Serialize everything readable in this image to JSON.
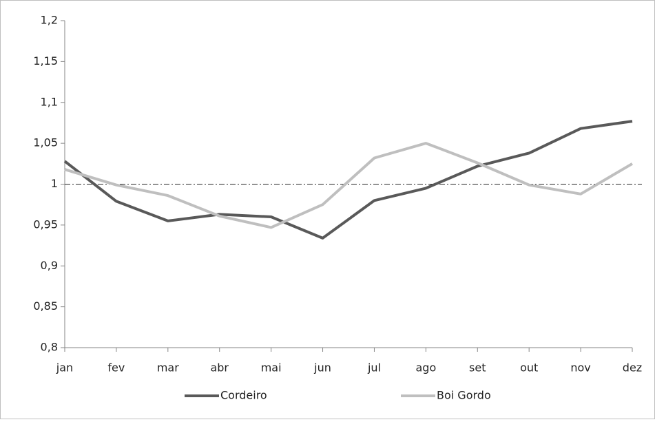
{
  "chart_data": {
    "type": "line",
    "categories": [
      "jan",
      "fev",
      "mar",
      "abr",
      "mai",
      "jun",
      "jul",
      "ago",
      "set",
      "out",
      "nov",
      "dez"
    ],
    "series": [
      {
        "name": "Cordeiro",
        "color": "#595959",
        "values": [
          1.028,
          0.979,
          0.955,
          0.963,
          0.96,
          0.934,
          0.98,
          0.995,
          1.022,
          1.038,
          1.068,
          1.077
        ]
      },
      {
        "name": "Boi Gordo",
        "color": "#bfbfbf",
        "values": [
          1.018,
          0.999,
          0.986,
          0.961,
          0.947,
          0.975,
          1.032,
          1.05,
          1.026,
          0.999,
          0.988,
          1.025
        ]
      }
    ],
    "ylim": [
      0.8,
      1.2
    ],
    "yticks": [
      {
        "value": 0.8,
        "label": "0,8"
      },
      {
        "value": 0.85,
        "label": "0,85"
      },
      {
        "value": 0.9,
        "label": "0,9"
      },
      {
        "value": 0.95,
        "label": "0,95"
      },
      1,
      {
        "value": 1.05,
        "label": "1,05"
      },
      {
        "value": 1.1,
        "label": "1,1"
      },
      {
        "value": 1.15,
        "label": "1,15"
      },
      {
        "value": 1.2,
        "label": "1,2"
      }
    ],
    "reference_line": 1,
    "legend": "bottom"
  }
}
